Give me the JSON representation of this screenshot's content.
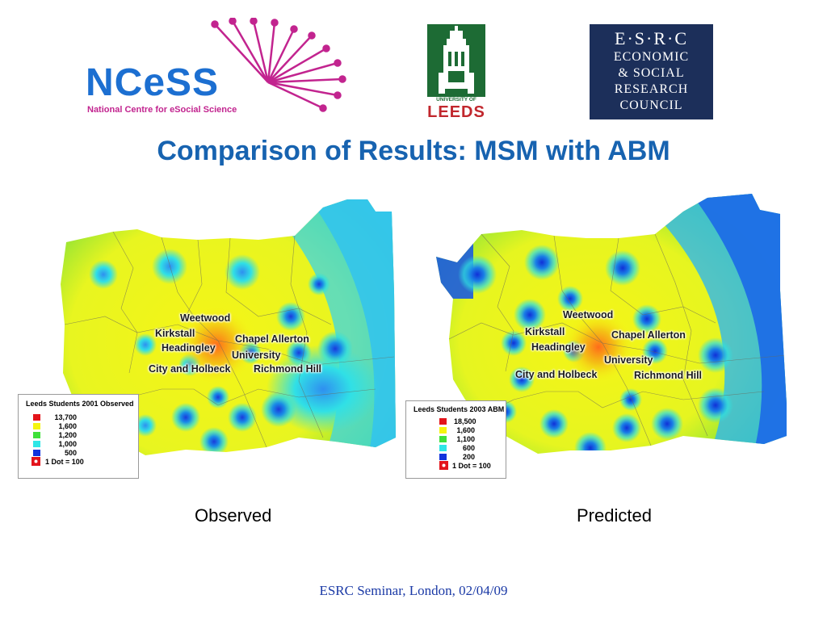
{
  "logos": {
    "ncess": {
      "text": "NCeSS",
      "subtitle": "National Centre for eSocial Science"
    },
    "leeds": {
      "line1": "UNIVERSITY OF",
      "line2": "LEEDS"
    },
    "esrc": {
      "line1": "E·S·R·C",
      "line2": "ECONOMIC",
      "line3": "& SOCIAL",
      "line4": "RESEARCH",
      "line5": "COUNCIL"
    }
  },
  "slide": {
    "title": "Comparison of Results: MSM with ABM",
    "footer": "ESRC Seminar, London, 02/04/09"
  },
  "maps": {
    "observed": {
      "caption": "Observed",
      "places": {
        "weetwood": "Weetwood",
        "kirkstall": "Kirkstall",
        "chapel_allerton": "Chapel Allerton",
        "headingley": "Headingley",
        "university": "University",
        "city_holbeck": "City and Holbeck",
        "richmond_hill": "Richmond Hill"
      },
      "legend": {
        "title": "Leeds Students 2001 Observed",
        "entries": [
          {
            "value": "13,700",
            "color": "#e3141b"
          },
          {
            "value": "1,600",
            "color": "#f5f50f"
          },
          {
            "value": "1,200",
            "color": "#3fe03a"
          },
          {
            "value": "1,000",
            "color": "#2ee6e6"
          },
          {
            "value": "500",
            "color": "#1133dd"
          }
        ],
        "dot_label": "1 Dot = 100"
      }
    },
    "predicted": {
      "caption": "Predicted",
      "places": {
        "weetwood": "Weetwood",
        "kirkstall": "Kirkstall",
        "chapel_allerton": "Chapel Allerton",
        "headingley": "Headingley",
        "university": "University",
        "city_holbeck": "City and Holbeck",
        "richmond_hill": "Richmond Hill"
      },
      "legend": {
        "title": "Leeds Students 2003 ABM",
        "entries": [
          {
            "value": "18,500",
            "color": "#e3141b"
          },
          {
            "value": "1,600",
            "color": "#f5f50f"
          },
          {
            "value": "1,100",
            "color": "#3fe03a"
          },
          {
            "value": "600",
            "color": "#2ee6e6"
          },
          {
            "value": "200",
            "color": "#1133dd"
          }
        ],
        "dot_label": "1 Dot = 100"
      }
    }
  }
}
